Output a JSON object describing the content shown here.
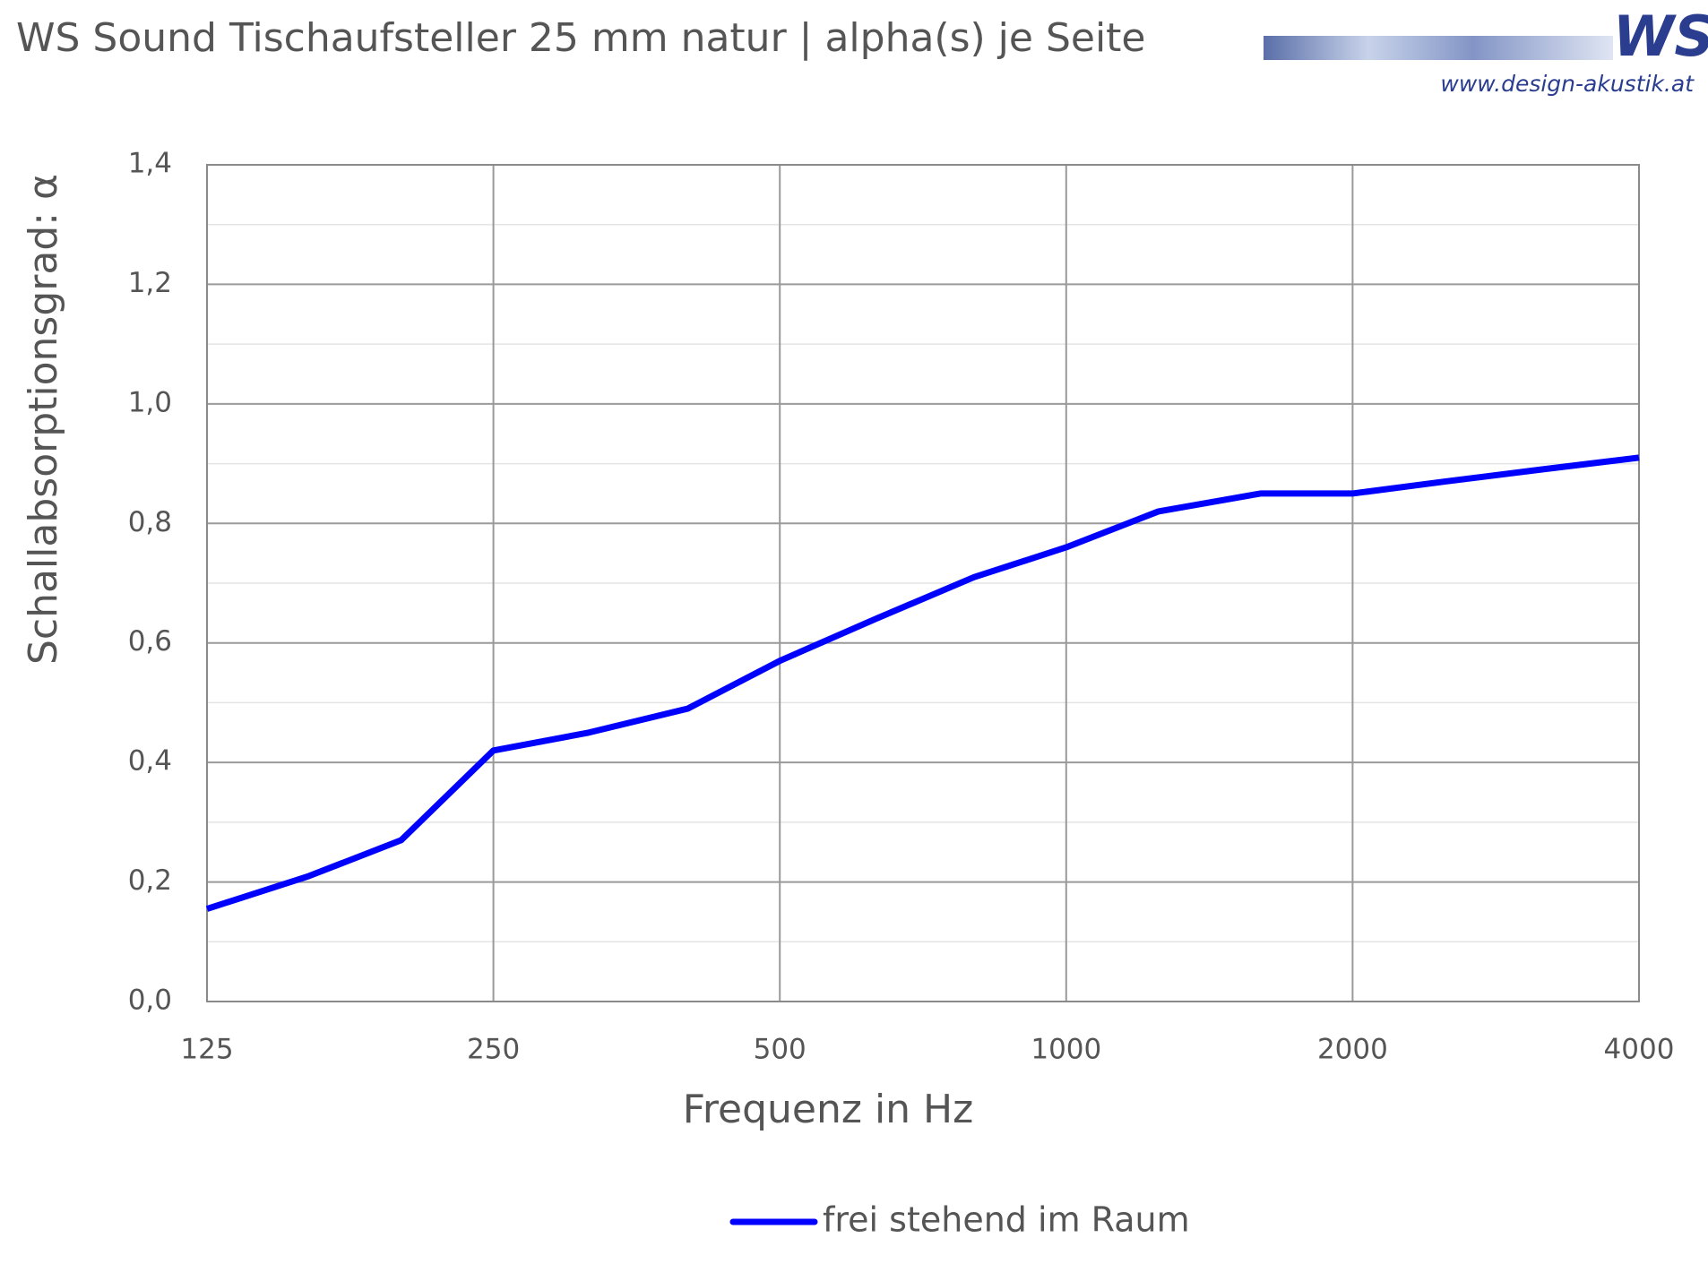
{
  "chart_data": {
    "type": "line",
    "title": "WS Sound Tischaufsteller 25 mm natur | alpha(s) je Seite",
    "logo": {
      "text": "WS",
      "url": "www.design-akustik.at"
    },
    "x_label": "Frequenz in Hz",
    "y_label": "Schallabsorptionsgrad: α",
    "x": [
      125,
      160,
      200,
      250,
      315,
      400,
      500,
      630,
      800,
      1000,
      1250,
      1600,
      2000,
      2500,
      3150,
      4000
    ],
    "series": [
      {
        "name": "frei stehend im Raum",
        "color": "#0000ff",
        "values": [
          0.155,
          0.21,
          0.27,
          0.42,
          0.45,
          0.49,
          0.57,
          0.64,
          0.71,
          0.76,
          0.82,
          0.85,
          0.85,
          0.87,
          0.89,
          0.91
        ]
      }
    ],
    "xlim": [
      125,
      4000
    ],
    "xscale": "log",
    "xticks": [
      125,
      250,
      500,
      1000,
      2000,
      4000
    ],
    "ylim": [
      0,
      1.4
    ],
    "yticks": [
      {
        "value": 0,
        "label": "0,0"
      },
      {
        "value": 0.2,
        "label": "0,2"
      },
      {
        "value": 0.4,
        "label": "0,4"
      },
      {
        "value": 0.6,
        "label": "0,6"
      },
      {
        "value": 0.8,
        "label": "0,8"
      },
      {
        "value": 1.0,
        "label": "1,0"
      },
      {
        "value": 1.2,
        "label": "1,2"
      },
      {
        "value": 1.4,
        "label": "1,4"
      }
    ],
    "yminorticks": [
      0.1,
      0.3,
      0.5,
      0.7,
      0.9,
      1.1,
      1.3
    ],
    "grid": true,
    "legend": "bottom"
  }
}
